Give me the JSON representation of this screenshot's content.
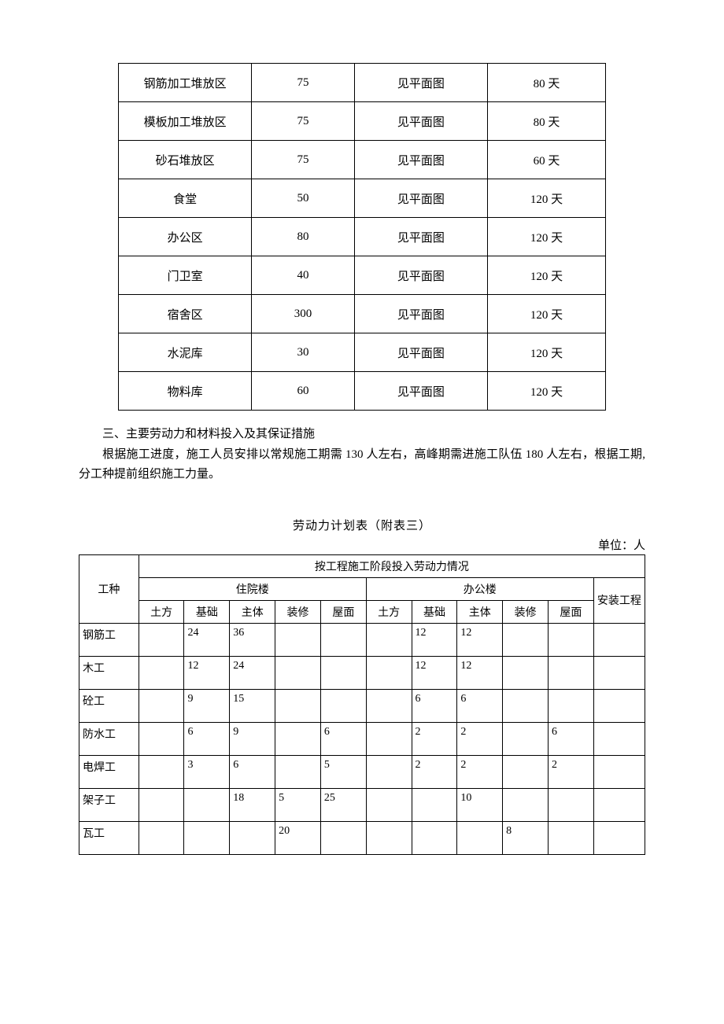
{
  "table1": {
    "columns_widths": [
      "170px",
      "130px",
      "170px",
      "150px"
    ],
    "rows": [
      [
        "钢筋加工堆放区",
        "75",
        "见平面图",
        "80 天"
      ],
      [
        "模板加工堆放区",
        "75",
        "见平面图",
        "80 天"
      ],
      [
        "砂石堆放区",
        "75",
        "见平面图",
        "60 天"
      ],
      [
        "食堂",
        "50",
        "见平面图",
        "120 天"
      ],
      [
        "办公区",
        "80",
        "见平面图",
        "120 天"
      ],
      [
        "门卫室",
        "40",
        "见平面图",
        "120 天"
      ],
      [
        "宿舍区",
        "300",
        "见平面图",
        "120 天"
      ],
      [
        "水泥库",
        "30",
        "见平面图",
        "120 天"
      ],
      [
        "物料库",
        "60",
        "见平面图",
        "120 天"
      ]
    ]
  },
  "section3": {
    "heading": "三、主要劳动力和材料投入及其保证措施",
    "body": "根据施工进度，施工人员安排以常规施工期需 130 人左右，高峰期需进施工队伍 180 人左右，根据工期,分工种提前组织施工力量。"
  },
  "table2": {
    "title": "劳动力计划表（附表三）",
    "unit": "单位：人",
    "header": {
      "col0": "工种",
      "span_all": "按工程施工阶段投入劳动力情况",
      "group1": "住院楼",
      "group2": "办公楼",
      "group3": "安装工程",
      "sub": [
        "土方",
        "基础",
        "主体",
        "装修",
        "屋面",
        "土方",
        "基础",
        "主体",
        "装修",
        "屋面"
      ]
    },
    "rows": [
      {
        "label": "钢筋工",
        "v": [
          "",
          "24",
          "36",
          "",
          "",
          "",
          "12",
          "12",
          "",
          "",
          ""
        ]
      },
      {
        "label": "木工",
        "v": [
          "",
          "12",
          "24",
          "",
          "",
          "",
          "12",
          "12",
          "",
          "",
          ""
        ]
      },
      {
        "label": "砼工",
        "v": [
          "",
          "9",
          "15",
          "",
          "",
          "",
          "6",
          "6",
          "",
          "",
          ""
        ]
      },
      {
        "label": "防水工",
        "v": [
          "",
          "6",
          "9",
          "",
          "6",
          "",
          "2",
          "2",
          "",
          "6",
          ""
        ]
      },
      {
        "label": "电焊工",
        "v": [
          "",
          "3",
          "6",
          "",
          "5",
          "",
          "2",
          "2",
          "",
          "2",
          ""
        ]
      },
      {
        "label": "架子工",
        "v": [
          "",
          "",
          "18",
          "5",
          "25",
          "",
          "",
          "10",
          "",
          "",
          ""
        ]
      },
      {
        "label": "瓦工",
        "v": [
          "",
          "",
          "",
          "20",
          "",
          "",
          "",
          "",
          "8",
          "",
          ""
        ]
      }
    ]
  }
}
